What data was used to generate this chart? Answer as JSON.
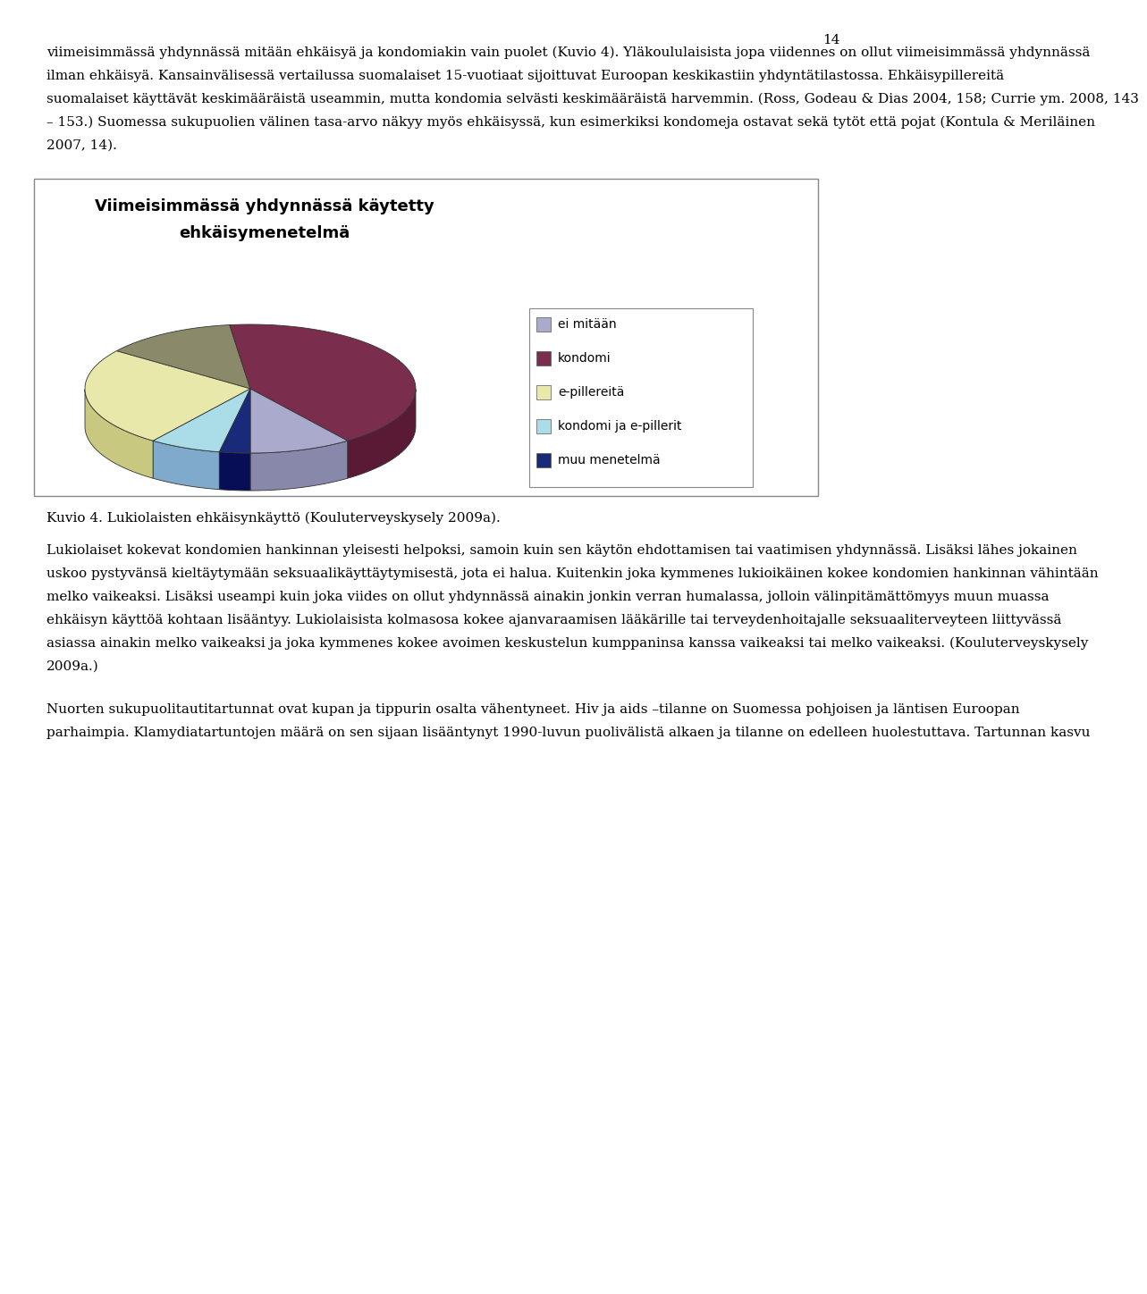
{
  "title_line1": "Viimeisimmässä yhdynnässä käytetty",
  "title_line2": "ehkäisymenetelmä",
  "page_number": "14",
  "background_color": "#FFFFFF",
  "text_color": "#000000",
  "segments": [
    {
      "label": "ei mitään",
      "pct": 10,
      "color_top": "#AAAACC",
      "color_side": "#8888AA"
    },
    {
      "label": "kondomi",
      "pct": 42,
      "color_top": "#7B2D4E",
      "color_side": "#5A1A35"
    },
    {
      "label": "",
      "pct": 13,
      "color_top": "#8A8A6A",
      "color_side": "#6A6A50"
    },
    {
      "label": "e-pillereitä",
      "pct": 25,
      "color_top": "#E8E8AA",
      "color_side": "#C8C880"
    },
    {
      "label": "kondomi ja e-pillerit",
      "pct": 7,
      "color_top": "#AADDE8",
      "color_side": "#80AACC"
    },
    {
      "label": "muu menetelmä",
      "pct": 3,
      "color_top": "#1A2A7A",
      "color_side": "#080E55"
    }
  ],
  "legend_items": [
    {
      "label": "ei mitään",
      "color": "#AAAACC"
    },
    {
      "label": "kondomi",
      "color": "#7B2D4E"
    },
    {
      "label": "e-pillereitä",
      "color": "#E8E8AA"
    },
    {
      "label": "kondomi ja e-pillerit",
      "color": "#AADDE8"
    },
    {
      "label": "muu menetelmä",
      "color": "#1A2A7A"
    }
  ],
  "body_text1": "viimeisimmässä yhdynnässä mitään ehkäisyä ja kondomiakin vain puolet (Kuvio 4). Yläkoululaisista jopa viidennes on ollut viimeisimmässä yhdynnässä ilman ehkäisyä. Kansainvälisessä vertailussa suomalaiset 15-vuotiaat sijoittuvat Euroopan keskikastiin yhdyntätilastossa. Ehkäisypillereitä suomalaiset käyttävät keskimääräistä useammin, mutta kondomia selvästi keskimääräistä harvemmin. (Ross, Godeau & Dias 2004, 158; Currie ym. 2008, 143 – 153.) Suomessa sukupuolien välinen tasa-arvo näkyy myös ehkäisyssä, kun esimerkiksi kondomeja ostavat sekä tytöt että pojat (Kontula & Meriläinen 2007, 14).",
  "caption": "Kuvio 4. Lukiolaisten ehkäisynkäyttö (Kouluterveyskysely 2009a).",
  "body_text2": "Lukiolaiset kokevat kondomien hankinnan yleisesti helpoksi, samoin kuin sen käytön ehdottamisen tai vaatimisen yhdynnässä. Lisäksi lähes jokainen uskoo pystyvänsä kieltäytymään seksuaalikäyttäytymisestä, jota ei halua. Kuitenkin joka kymmenes lukioikäinen kokee kondomien hankinnan vähintään melko vaikeaksi. Lisäksi useampi kuin joka viides on ollut yhdynnässä ainakin jonkin verran humalassa, jolloin välinpitämättömyys muun muassa ehkäisyn käyttöä kohtaan lisääntyy. Lukiolaisista kolmasosa kokee ajanvaraamisen lääkärille tai terveydenhoitajalle seksuaaliterveyteen liittyvässä asiassa ainakin melko vaikeaksi ja joka kymmenes kokee avoimen keskustelun kumppaninsa kanssa vaikeaksi tai melko vaikeaksi. (Kouluterveyskysely 2009a.)",
  "body_text3": "Nuorten sukupuolitautitartunnat ovat kupan ja tippurin osalta vähentyneet. Hiv ja aids –tilanne on Suomessa pohjoisen ja läntisen Euroopan parhaimpia. Klamydiatartuntojen määrä on sen sijaan lisääntynyt 1990-luvun puolivälistä alkaen ja tilanne on edelleen huolestuttava. Tartunnan kasvu"
}
